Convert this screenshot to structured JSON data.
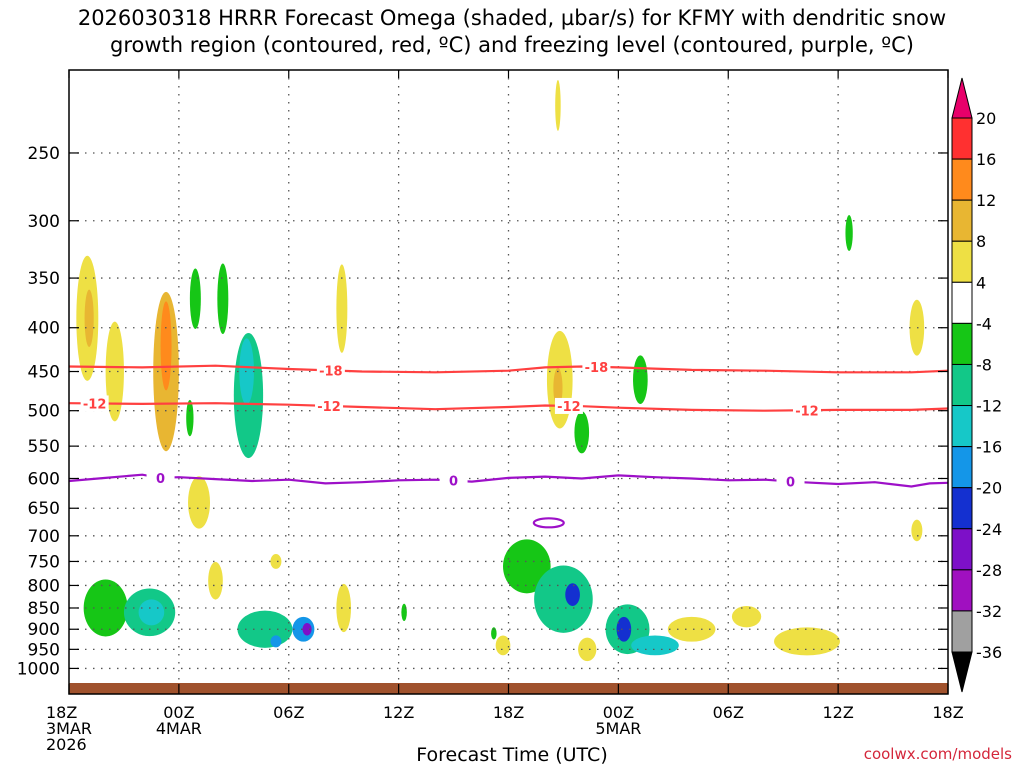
{
  "title_line1": "2026030318 HRRR Forecast Omega (shaded, µbar/s) for KFMY with dendritic snow",
  "title_line2": "growth region (contoured, red, ºC) and freezing level (contoured, purple, ºC)",
  "credit": "coolwx.com/models",
  "chart_data": {
    "type": "heatmap",
    "xlabel": "Forecast Time (UTC)",
    "ylabel": "",
    "x_unit": "forecast hours from 2026-03-03 18Z",
    "xlim": [
      0,
      48
    ],
    "ylim": [
      1040,
      200
    ],
    "y_scale": "log",
    "grid": true,
    "x_ticks": [
      {
        "h": 0,
        "labels": [
          "18Z",
          "3MAR",
          "2026"
        ]
      },
      {
        "h": 6,
        "labels": [
          "00Z",
          "4MAR"
        ]
      },
      {
        "h": 12,
        "labels": [
          "06Z"
        ]
      },
      {
        "h": 18,
        "labels": [
          "12Z"
        ]
      },
      {
        "h": 24,
        "labels": [
          "18Z"
        ]
      },
      {
        "h": 30,
        "labels": [
          "00Z",
          "5MAR"
        ]
      },
      {
        "h": 36,
        "labels": [
          "06Z"
        ]
      },
      {
        "h": 42,
        "labels": [
          "12Z"
        ]
      },
      {
        "h": 48,
        "labels": [
          "18Z"
        ]
      }
    ],
    "y_ticks": [
      250,
      300,
      350,
      400,
      450,
      500,
      550,
      600,
      650,
      700,
      750,
      800,
      850,
      900,
      950,
      1000
    ],
    "colorbar": {
      "labels": [
        20,
        16,
        12,
        8,
        4,
        -4,
        -8,
        -12,
        -16,
        -20,
        -24,
        -28,
        -32,
        -36
      ],
      "colors": [
        "#e8006a",
        "#ff3030",
        "#ff8a1c",
        "#e8b632",
        "#eee044",
        "#ffffff",
        "#16c616",
        "#12c888",
        "#16c8c8",
        "#1496e8",
        "#1430d0",
        "#7d10c8",
        "#a010c0",
        "#a0a0a0",
        "#000000"
      ]
    },
    "omega_cells": [
      {
        "h": 1.0,
        "p": 390,
        "dh": 0.6,
        "dp": 130,
        "value": 6
      },
      {
        "h": 1.1,
        "p": 390,
        "dh": 0.25,
        "dp": 60,
        "value": 10
      },
      {
        "h": 5.3,
        "p": 450,
        "dh": 0.7,
        "dp": 190,
        "value": 8
      },
      {
        "h": 5.3,
        "p": 420,
        "dh": 0.3,
        "dp": 100,
        "value": 12
      },
      {
        "h": 2.0,
        "p": 850,
        "dh": 1.2,
        "dp": 130,
        "value": -6
      },
      {
        "h": 4.4,
        "p": 860,
        "dh": 1.4,
        "dp": 110,
        "value": -9
      },
      {
        "h": 4.5,
        "p": 860,
        "dh": 0.7,
        "dp": 60,
        "value": -14
      },
      {
        "h": 9.8,
        "p": 480,
        "dh": 0.8,
        "dp": 160,
        "value": -9
      },
      {
        "h": 9.7,
        "p": 450,
        "dh": 0.4,
        "dp": 80,
        "value": -14
      },
      {
        "h": 8.4,
        "p": 370,
        "dh": 0.3,
        "dp": 70,
        "value": -7
      },
      {
        "h": 10.7,
        "p": 900,
        "dh": 1.5,
        "dp": 90,
        "value": -8
      },
      {
        "h": 12.8,
        "p": 900,
        "dh": 0.6,
        "dp": 60,
        "value": -18
      },
      {
        "h": 13.0,
        "p": 900,
        "dh": 0.25,
        "dp": 30,
        "value": -24
      },
      {
        "h": 11.3,
        "p": 930,
        "dh": 0.3,
        "dp": 30,
        "value": -16
      },
      {
        "h": 15.0,
        "p": 850,
        "dh": 0.4,
        "dp": 110,
        "value": 5
      },
      {
        "h": 14.9,
        "p": 380,
        "dh": 0.3,
        "dp": 90,
        "value": 5
      },
      {
        "h": 26.8,
        "p": 460,
        "dh": 0.7,
        "dp": 120,
        "value": 6
      },
      {
        "h": 26.7,
        "p": 470,
        "dh": 0.25,
        "dp": 50,
        "value": 10
      },
      {
        "h": 25.0,
        "p": 760,
        "dh": 1.3,
        "dp": 110,
        "value": -7
      },
      {
        "h": 27.0,
        "p": 830,
        "dh": 1.6,
        "dp": 150,
        "value": -10
      },
      {
        "h": 27.5,
        "p": 820,
        "dh": 0.4,
        "dp": 50,
        "value": -20
      },
      {
        "h": 30.5,
        "p": 900,
        "dh": 1.2,
        "dp": 120,
        "value": -9
      },
      {
        "h": 30.3,
        "p": 900,
        "dh": 0.4,
        "dp": 60,
        "value": -20
      },
      {
        "h": 32.0,
        "p": 940,
        "dh": 1.3,
        "dp": 50,
        "value": -12
      },
      {
        "h": 28.3,
        "p": 950,
        "dh": 0.5,
        "dp": 60,
        "value": 6
      },
      {
        "h": 28.0,
        "p": 530,
        "dh": 0.4,
        "dp": 60,
        "value": -6
      },
      {
        "h": 31.2,
        "p": 460,
        "dh": 0.4,
        "dp": 60,
        "value": -6
      },
      {
        "h": 34.0,
        "p": 900,
        "dh": 1.3,
        "dp": 60,
        "value": 5
      },
      {
        "h": 37.0,
        "p": 870,
        "dh": 0.8,
        "dp": 50,
        "value": 5
      },
      {
        "h": 40.3,
        "p": 930,
        "dh": 1.8,
        "dp": 70,
        "value": 5
      },
      {
        "h": 46.3,
        "p": 400,
        "dh": 0.4,
        "dp": 60,
        "value": 5
      },
      {
        "h": 46.3,
        "p": 690,
        "dh": 0.3,
        "dp": 40,
        "value": 5
      },
      {
        "h": 2.5,
        "p": 450,
        "dh": 0.5,
        "dp": 120,
        "value": 5
      },
      {
        "h": 7.1,
        "p": 640,
        "dh": 0.6,
        "dp": 90,
        "value": 5
      },
      {
        "h": 6.9,
        "p": 370,
        "dh": 0.3,
        "dp": 60,
        "value": -5
      },
      {
        "h": 6.6,
        "p": 510,
        "dh": 0.2,
        "dp": 50,
        "value": -6
      },
      {
        "h": 8.0,
        "p": 790,
        "dh": 0.4,
        "dp": 80,
        "value": 5
      },
      {
        "h": 11.3,
        "p": 750,
        "dh": 0.3,
        "dp": 30,
        "value": 5
      },
      {
        "h": 18.3,
        "p": 860,
        "dh": 0.15,
        "dp": 40,
        "value": -5
      },
      {
        "h": 23.7,
        "p": 940,
        "dh": 0.4,
        "dp": 50,
        "value": 5
      },
      {
        "h": 23.2,
        "p": 910,
        "dh": 0.15,
        "dp": 30,
        "value": -6
      },
      {
        "h": 42.6,
        "p": 310,
        "dh": 0.2,
        "dp": 30,
        "value": -6
      },
      {
        "h": 26.7,
        "p": 220,
        "dh": 0.15,
        "dp": 30,
        "value": 5
      }
    ],
    "contours": [
      {
        "level": "-18",
        "color": "#ff4040",
        "x": [
          0,
          4,
          8,
          12,
          16,
          20,
          24,
          26,
          28,
          30,
          34,
          38,
          42,
          46,
          48
        ],
        "p": [
          444,
          445,
          443,
          447,
          450,
          451,
          449,
          445,
          444,
          445,
          448,
          449,
          451,
          451,
          449
        ],
        "label_h": [
          14.3,
          28.8
        ]
      },
      {
        "label": "-12",
        "level": "-12",
        "color": "#ff4040",
        "x": [
          0,
          4,
          8,
          12,
          16,
          20,
          24,
          26,
          28,
          30,
          34,
          38,
          42,
          46,
          48
        ],
        "p": [
          490,
          491,
          490,
          492,
          495,
          498,
          495,
          493,
          494,
          496,
          499,
          500,
          499,
          499,
          497
        ],
        "label_h": [
          1.4,
          14.2,
          27.3,
          40.3
        ]
      },
      {
        "level": "0",
        "color": "#9d10c8",
        "x": [
          0,
          2,
          4,
          5,
          6,
          8,
          10,
          12,
          14,
          16,
          18,
          20,
          22,
          24,
          26,
          28,
          30,
          32,
          34,
          36,
          38,
          40,
          42,
          44,
          46,
          47,
          48
        ],
        "p": [
          604,
          599,
          594,
          599,
          598,
          601,
          604,
          602,
          608,
          606,
          603,
          602,
          605,
          599,
          597,
          600,
          595,
          598,
          600,
          603,
          602,
          606,
          609,
          606,
          613,
          608,
          607
        ],
        "label_h": [
          5.0,
          21.0,
          39.4
        ]
      }
    ]
  }
}
